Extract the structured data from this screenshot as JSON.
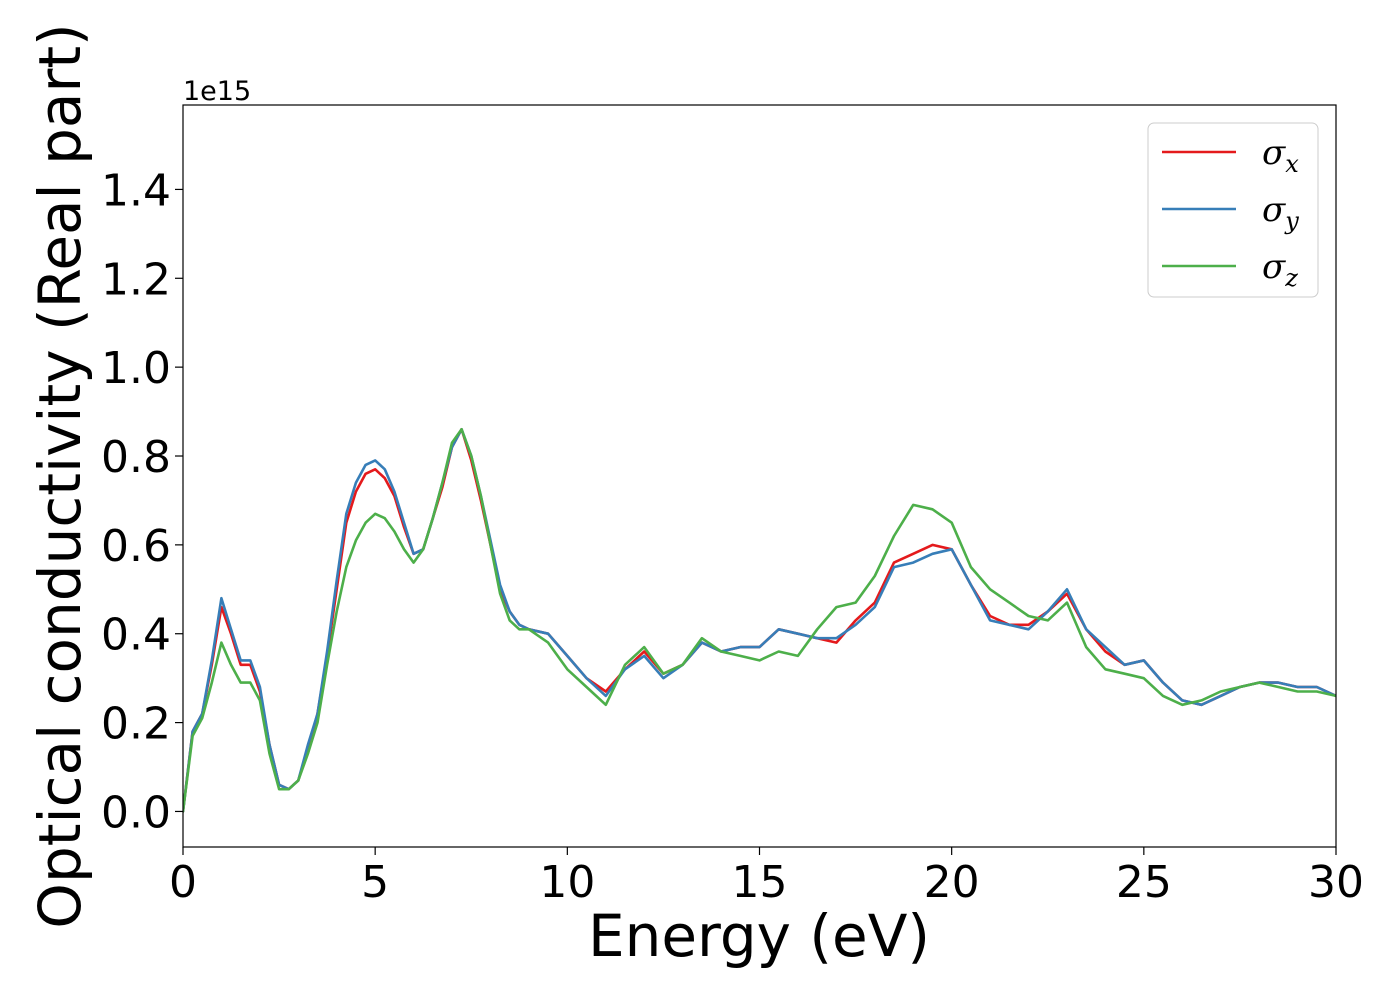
{
  "chart_data": {
    "type": "line",
    "xlabel": "Energy (eV)",
    "ylabel": "Optical conductivity (Real part)",
    "y_offset_label": "1e15",
    "xlim": [
      0,
      30
    ],
    "ylim": [
      -0.08,
      1.59
    ],
    "xticks": [
      0,
      5,
      10,
      15,
      20,
      25,
      30
    ],
    "xtick_labels": [
      "0",
      "5",
      "10",
      "15",
      "20",
      "25",
      "30"
    ],
    "yticks": [
      0.0,
      0.2,
      0.4,
      0.6,
      0.8,
      1.0,
      1.2,
      1.4
    ],
    "ytick_labels": [
      "0.0",
      "0.2",
      "0.4",
      "0.6",
      "0.8",
      "1.0",
      "1.2",
      "1.4"
    ],
    "grid": false,
    "legend_position": "top-right",
    "x": [
      0,
      0.25,
      0.5,
      0.75,
      1.0,
      1.25,
      1.5,
      1.75,
      2.0,
      2.25,
      2.5,
      2.75,
      3.0,
      3.25,
      3.5,
      3.75,
      4.0,
      4.25,
      4.5,
      4.75,
      5.0,
      5.25,
      5.5,
      5.75,
      6.0,
      6.25,
      6.5,
      6.75,
      7.0,
      7.25,
      7.5,
      7.75,
      8.0,
      8.25,
      8.5,
      8.75,
      9.0,
      9.5,
      10.0,
      10.5,
      11.0,
      11.5,
      12.0,
      12.5,
      13.0,
      13.5,
      14.0,
      14.5,
      15.0,
      15.5,
      16.0,
      16.5,
      17.0,
      17.5,
      18.0,
      18.5,
      19.0,
      19.5,
      20.0,
      20.5,
      21.0,
      21.5,
      22.0,
      22.5,
      23.0,
      23.5,
      24.0,
      24.5,
      25.0,
      25.5,
      26.0,
      26.5,
      27.0,
      27.5,
      28.0,
      28.5,
      29.0,
      29.5,
      30.0
    ],
    "series": [
      {
        "name": "σx",
        "color": "#e41a1c",
        "values": [
          0.0,
          0.18,
          0.22,
          0.33,
          0.46,
          0.4,
          0.33,
          0.33,
          0.27,
          0.15,
          0.06,
          0.05,
          0.07,
          0.14,
          0.22,
          0.35,
          0.5,
          0.65,
          0.72,
          0.76,
          0.77,
          0.75,
          0.71,
          0.64,
          0.58,
          0.59,
          0.66,
          0.73,
          0.82,
          0.86,
          0.79,
          0.7,
          0.6,
          0.5,
          0.45,
          0.42,
          0.41,
          0.4,
          0.35,
          0.3,
          0.27,
          0.32,
          0.36,
          0.31,
          0.33,
          0.38,
          0.36,
          0.37,
          0.37,
          0.41,
          0.4,
          0.39,
          0.38,
          0.43,
          0.47,
          0.56,
          0.58,
          0.6,
          0.59,
          0.51,
          0.44,
          0.42,
          0.42,
          0.45,
          0.49,
          0.41,
          0.36,
          0.33,
          0.34,
          0.29,
          0.25,
          0.24,
          0.26,
          0.28,
          0.29,
          0.29,
          0.28,
          0.28,
          0.26
        ]
      },
      {
        "name": "σy",
        "color": "#377eb8",
        "values": [
          0.0,
          0.18,
          0.22,
          0.34,
          0.48,
          0.41,
          0.34,
          0.34,
          0.28,
          0.15,
          0.06,
          0.05,
          0.07,
          0.15,
          0.22,
          0.36,
          0.52,
          0.67,
          0.74,
          0.78,
          0.79,
          0.77,
          0.72,
          0.65,
          0.58,
          0.59,
          0.66,
          0.74,
          0.82,
          0.86,
          0.8,
          0.71,
          0.61,
          0.51,
          0.45,
          0.42,
          0.41,
          0.4,
          0.35,
          0.3,
          0.26,
          0.32,
          0.35,
          0.3,
          0.33,
          0.38,
          0.36,
          0.37,
          0.37,
          0.41,
          0.4,
          0.39,
          0.39,
          0.42,
          0.46,
          0.55,
          0.56,
          0.58,
          0.59,
          0.51,
          0.43,
          0.42,
          0.41,
          0.45,
          0.5,
          0.41,
          0.37,
          0.33,
          0.34,
          0.29,
          0.25,
          0.24,
          0.26,
          0.28,
          0.29,
          0.29,
          0.28,
          0.28,
          0.26
        ]
      },
      {
        "name": "σz",
        "color": "#4daf4a",
        "values": [
          0.0,
          0.17,
          0.21,
          0.29,
          0.38,
          0.33,
          0.29,
          0.29,
          0.25,
          0.13,
          0.05,
          0.05,
          0.07,
          0.13,
          0.2,
          0.33,
          0.45,
          0.55,
          0.61,
          0.65,
          0.67,
          0.66,
          0.63,
          0.59,
          0.56,
          0.59,
          0.66,
          0.74,
          0.83,
          0.86,
          0.8,
          0.71,
          0.6,
          0.49,
          0.43,
          0.41,
          0.41,
          0.38,
          0.32,
          0.28,
          0.24,
          0.33,
          0.37,
          0.31,
          0.33,
          0.39,
          0.36,
          0.35,
          0.34,
          0.36,
          0.35,
          0.41,
          0.46,
          0.47,
          0.53,
          0.62,
          0.69,
          0.68,
          0.65,
          0.55,
          0.5,
          0.47,
          0.44,
          0.43,
          0.47,
          0.37,
          0.32,
          0.31,
          0.3,
          0.26,
          0.24,
          0.25,
          0.27,
          0.28,
          0.29,
          0.28,
          0.27,
          0.27,
          0.26
        ]
      }
    ]
  }
}
